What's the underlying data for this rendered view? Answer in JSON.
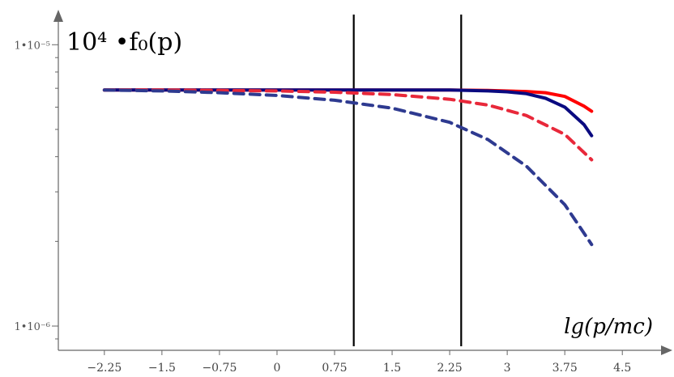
{
  "chart_data": {
    "type": "line",
    "title": "10⁴ •f₀(p)",
    "xlabel": "lg(p/mc)",
    "ylabel": "",
    "y_scale": "log",
    "xlim": [
      -2.85,
      4.92
    ],
    "ylim": [
      8.2e-07,
      1.28e-05
    ],
    "x_ticks": [
      -2.25,
      -1.5,
      -0.75,
      0,
      0.75,
      1.5,
      2.25,
      3,
      3.75,
      4.5
    ],
    "x_tick_labels": [
      "−2.25",
      "−1.5",
      "−0.75",
      "0",
      "0.75",
      "1.5",
      "2.25",
      "3",
      "3.75",
      "4.5"
    ],
    "y_major_ticks": [
      1e-06,
      1e-05
    ],
    "y_tick_labels": [
      "1•10⁻⁶",
      "1•10⁻⁵"
    ],
    "vertical_lines_x": [
      1.0,
      2.4
    ],
    "colors": {
      "red": "#ff0000",
      "navy": "#0a0a80",
      "red_dashed": "#e8283a",
      "navy_dashed": "#2e3a90",
      "vline": "#000000",
      "axis": "#666666"
    },
    "series": [
      {
        "color": "#ff0000",
        "style": "solid",
        "x": [
          -2.25,
          -1.5,
          -0.75,
          0,
          0.75,
          1.5,
          2.25,
          2.75,
          3.25,
          3.5,
          3.75,
          4.0,
          4.1
        ],
        "y": [
          6.9e-06,
          6.9e-06,
          6.9e-06,
          6.9e-06,
          6.9e-06,
          6.9e-06,
          6.9e-06,
          6.88e-06,
          6.82e-06,
          6.75e-06,
          6.55e-06,
          6.05e-06,
          5.8e-06
        ]
      },
      {
        "color": "#0a0a80",
        "style": "solid",
        "x": [
          -2.25,
          -1.5,
          -0.75,
          0,
          0.75,
          1.5,
          2.25,
          2.75,
          3.0,
          3.25,
          3.5,
          3.75,
          4.0,
          4.1
        ],
        "y": [
          6.9e-06,
          6.9e-06,
          6.9e-06,
          6.9e-06,
          6.9e-06,
          6.9e-06,
          6.9e-06,
          6.85e-06,
          6.8e-06,
          6.7e-06,
          6.45e-06,
          6e-06,
          5.2e-06,
          4.75e-06
        ]
      },
      {
        "color": "#e8283a",
        "style": "dashed",
        "x": [
          -2.25,
          -1.5,
          -0.75,
          0,
          0.75,
          1.5,
          2.25,
          2.75,
          3.25,
          3.75,
          4.1
        ],
        "y": [
          6.9e-06,
          6.9e-06,
          6.88e-06,
          6.85e-06,
          6.78e-06,
          6.65e-06,
          6.4e-06,
          6.1e-06,
          5.6e-06,
          4.8e-06,
          3.9e-06
        ]
      },
      {
        "color": "#2e3a90",
        "style": "dashed",
        "x": [
          -2.25,
          -1.5,
          -0.75,
          0,
          0.75,
          1.5,
          2.25,
          2.75,
          3.25,
          3.75,
          4.1
        ],
        "y": [
          6.9e-06,
          6.85e-06,
          6.75e-06,
          6.6e-06,
          6.35e-06,
          5.95e-06,
          5.3e-06,
          4.6e-06,
          3.7e-06,
          2.7e-06,
          1.95e-06
        ]
      }
    ]
  }
}
